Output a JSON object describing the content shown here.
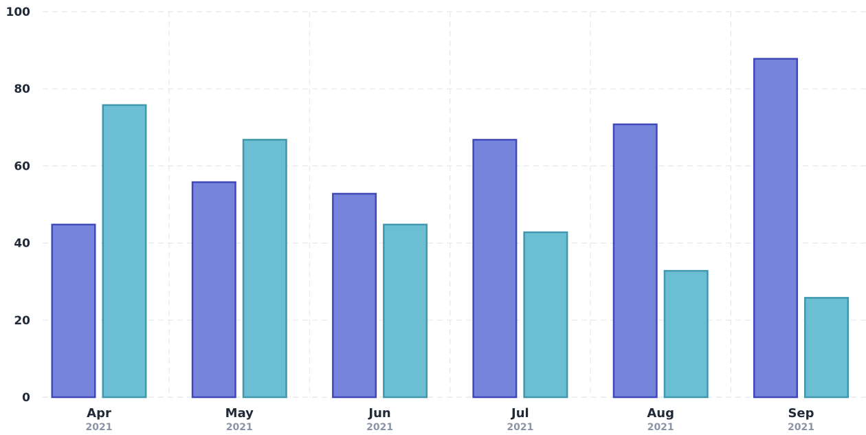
{
  "chart_data": {
    "type": "bar",
    "categories": [
      "Apr",
      "May",
      "Jun",
      "Jul",
      "Aug",
      "Sep"
    ],
    "category_sublabels": [
      "2021",
      "2021",
      "2021",
      "2021",
      "2021",
      "2021"
    ],
    "series": [
      {
        "values": [
          45,
          56,
          53,
          67,
          71,
          88
        ],
        "fill": "#7684dc",
        "stroke": "#3f48b8"
      },
      {
        "values": [
          76,
          67,
          45,
          43,
          33,
          26
        ],
        "fill": "#6cbfd3",
        "stroke": "#3f98ae"
      }
    ],
    "ylim": [
      0,
      100
    ],
    "yticks": [
      0,
      20,
      40,
      60,
      80,
      100
    ],
    "grid": true,
    "legend": "none"
  }
}
